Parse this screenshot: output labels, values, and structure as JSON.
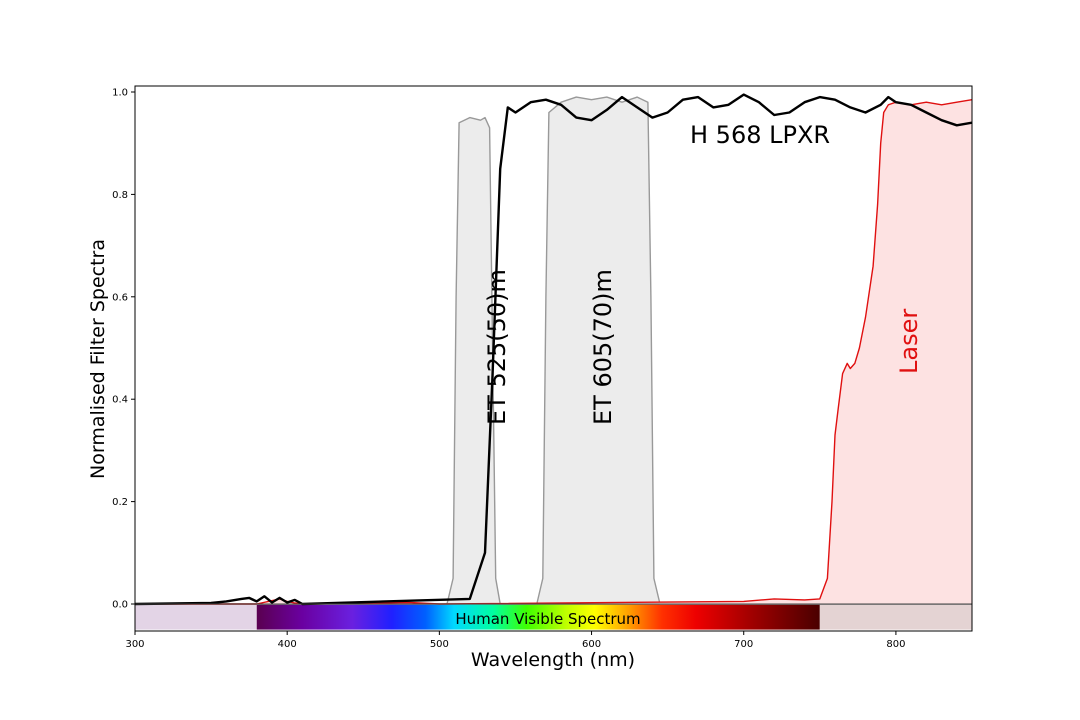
{
  "chart_data": {
    "type": "area",
    "title": "",
    "xlabel": "Wavelength (nm)",
    "ylabel": "Normalised Filter Spectra",
    "xlim": [
      300,
      850
    ],
    "ylim": [
      0,
      1.0
    ],
    "x_ticks": [
      300,
      400,
      500,
      600,
      700,
      800
    ],
    "y_ticks": [
      0.0,
      0.2,
      0.4,
      0.6,
      0.8,
      1.0
    ],
    "x_tick_labels": [
      "300",
      "400",
      "500",
      "600",
      "700",
      "800"
    ],
    "y_tick_labels": [
      "0.0",
      "0.2",
      "0.4",
      "0.6",
      "0.8",
      "1.0"
    ],
    "grid": false,
    "series": [
      {
        "label": "ET 525(50)m",
        "color": "#999999",
        "fill": "#ececec",
        "x": [
          300,
          505,
          509,
          511,
          513,
          520,
          527,
          530,
          533,
          535,
          537,
          540,
          850
        ],
        "y": [
          0,
          0,
          0.05,
          0.6,
          0.94,
          0.95,
          0.945,
          0.95,
          0.93,
          0.5,
          0.05,
          0,
          0
        ]
      },
      {
        "label": "ET 605(70)m",
        "color": "#999999",
        "fill": "#ececec",
        "x": [
          300,
          564,
          568,
          570,
          572,
          580,
          590,
          600,
          610,
          620,
          630,
          637,
          639,
          641,
          645,
          850
        ],
        "y": [
          0,
          0,
          0.05,
          0.6,
          0.96,
          0.98,
          0.99,
          0.985,
          0.99,
          0.98,
          0.99,
          0.98,
          0.6,
          0.05,
          0,
          0
        ]
      },
      {
        "label": "H 568 LPXR",
        "color": "#000000",
        "fill": "none",
        "x": [
          300,
          350,
          360,
          370,
          375,
          380,
          385,
          390,
          395,
          400,
          405,
          410,
          520,
          530,
          535,
          540,
          545,
          550,
          560,
          570,
          580,
          590,
          600,
          610,
          620,
          630,
          640,
          650,
          660,
          670,
          680,
          690,
          700,
          710,
          720,
          730,
          740,
          750,
          760,
          770,
          780,
          790,
          795,
          800,
          810,
          820,
          830,
          840,
          850
        ],
        "y": [
          0,
          0.002,
          0.005,
          0.01,
          0.012,
          0.005,
          0.015,
          0.003,
          0.012,
          0.003,
          0.008,
          0,
          0.01,
          0.1,
          0.45,
          0.85,
          0.97,
          0.96,
          0.98,
          0.985,
          0.975,
          0.95,
          0.945,
          0.965,
          0.99,
          0.97,
          0.95,
          0.96,
          0.985,
          0.99,
          0.97,
          0.975,
          0.995,
          0.98,
          0.955,
          0.96,
          0.98,
          0.99,
          0.985,
          0.97,
          0.96,
          0.975,
          0.99,
          0.98,
          0.975,
          0.96,
          0.945,
          0.935,
          0.94
        ]
      },
      {
        "label": "Laser",
        "color": "#e01010",
        "fill": "#fde2e2",
        "x": [
          300,
          380,
          395,
          400,
          405,
          410,
          460,
          480,
          500,
          700,
          720,
          740,
          750,
          755,
          758,
          760,
          762,
          765,
          768,
          770,
          773,
          776,
          780,
          785,
          788,
          790,
          792,
          795,
          800,
          810,
          820,
          830,
          840,
          850
        ],
        "y": [
          0,
          0,
          0.01,
          0.005,
          0.002,
          0,
          0.002,
          0.003,
          0,
          0.005,
          0.01,
          0.008,
          0.01,
          0.05,
          0.2,
          0.33,
          0.38,
          0.45,
          0.47,
          0.46,
          0.47,
          0.5,
          0.56,
          0.66,
          0.78,
          0.9,
          0.96,
          0.975,
          0.98,
          0.975,
          0.98,
          0.975,
          0.98,
          0.985
        ]
      }
    ],
    "annotations": {
      "et525": "ET 525(50)m",
      "et605": "ET 605(70)m",
      "h568": "H 568 LPXR",
      "laser": "Laser",
      "visible": "Human Visible Spectrum"
    },
    "visible_band": {
      "x": [
        380,
        750
      ],
      "y": [
        -0.05,
        0
      ]
    },
    "colors": {
      "et": "#999999",
      "lpxr": "#000000",
      "laser": "#e01010",
      "uv_region": "#e3d4e6",
      "ir_region": "#e4d3d3"
    }
  }
}
